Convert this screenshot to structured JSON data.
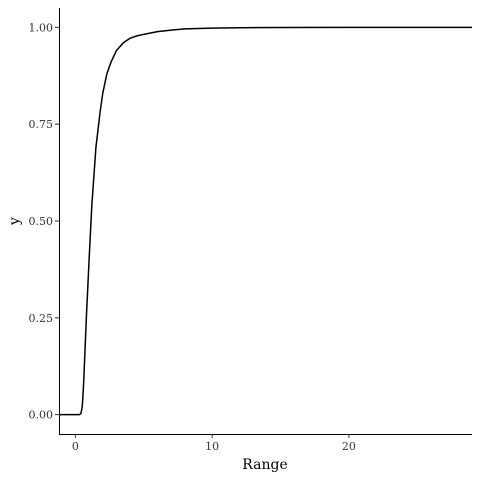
{
  "chart_data": {
    "type": "line",
    "xlabel": "Range",
    "ylabel": "y",
    "xlim": [
      -1.2,
      29
    ],
    "ylim": [
      -0.05,
      1.05
    ],
    "x_ticks": [
      0,
      10,
      20
    ],
    "x_tick_labels": [
      "0",
      "10",
      "20"
    ],
    "y_ticks": [
      0,
      0.25,
      0.5,
      0.75,
      1
    ],
    "y_tick_labels": [
      "0.00",
      "0.25",
      "0.50",
      "0.75",
      "1.00"
    ],
    "grid": false,
    "legend": "none",
    "series": [
      {
        "color": "#000000",
        "x": [
          -1.2,
          0.3,
          0.4,
          0.5,
          0.6,
          0.8,
          1.0,
          1.2,
          1.5,
          1.8,
          2.0,
          2.3,
          2.6,
          3.0,
          3.5,
          4.0,
          4.5,
          5.0,
          6.0,
          7.0,
          8.0,
          10.0,
          12.0,
          15.0,
          20.0,
          25.0,
          29.0
        ],
        "y": [
          0.0,
          0.0,
          0.003,
          0.02,
          0.08,
          0.25,
          0.4,
          0.54,
          0.69,
          0.78,
          0.83,
          0.88,
          0.91,
          0.94,
          0.96,
          0.972,
          0.978,
          0.982,
          0.989,
          0.993,
          0.996,
          0.998,
          0.999,
          0.9995,
          1.0,
          1.0,
          1.0
        ]
      }
    ]
  }
}
